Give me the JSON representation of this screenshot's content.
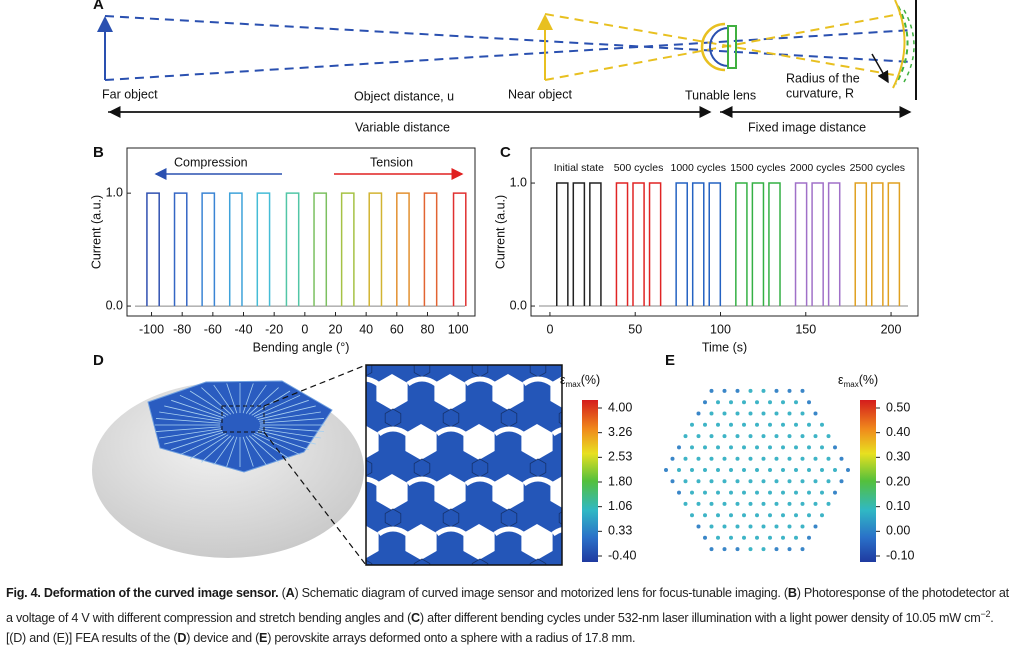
{
  "panel_a": {
    "label": "A",
    "far_object": "Far object",
    "object_distance": "Object distance, u",
    "near_object": "Near object",
    "tunable_lens": "Tunable lens",
    "radius_line1": "Radius of the",
    "radius_line2": "curvature, R",
    "variable_distance": "Variable distance",
    "fixed_distance": "Fixed image distance"
  },
  "panel_b": {
    "label": "B",
    "xlabel": "Bending angle (°)",
    "ylabel": "Current (a.u.)",
    "compression": "Compression",
    "tension": "Tension",
    "xlim": [
      -116,
      111
    ],
    "ylim": [
      -0.088,
      1.4
    ],
    "xticks": [
      -100,
      -80,
      -60,
      -40,
      -20,
      0,
      20,
      40,
      60,
      80,
      100
    ],
    "yticks": [
      {
        "value": 0,
        "label": "0.0"
      },
      {
        "value": 1,
        "label": "1.0"
      }
    ],
    "series": [
      {
        "color": "#3050b0",
        "x_on": [
          -103
        ],
        "x_off": [
          -95
        ],
        "values": [
          1.0
        ]
      },
      {
        "color": "#3466c4",
        "x_on": [
          -85
        ],
        "x_off": [
          -77
        ],
        "values": [
          1.0
        ]
      },
      {
        "color": "#3a84d4",
        "x_on": [
          -67
        ],
        "x_off": [
          -59
        ],
        "values": [
          1.0
        ]
      },
      {
        "color": "#3ea2da",
        "x_on": [
          -49
        ],
        "x_off": [
          -41
        ],
        "values": [
          1.0
        ]
      },
      {
        "color": "#44bcd6",
        "x_on": [
          -31
        ],
        "x_off": [
          -23
        ],
        "values": [
          1.0
        ]
      },
      {
        "color": "#52c6a6",
        "x_on": [
          -12
        ],
        "x_off": [
          -4
        ],
        "values": [
          1.0
        ]
      },
      {
        "color": "#7cc060",
        "x_on": [
          6
        ],
        "x_off": [
          14
        ],
        "values": [
          1.0
        ]
      },
      {
        "color": "#a6c244",
        "x_on": [
          24
        ],
        "x_off": [
          32
        ],
        "values": [
          1.0
        ]
      },
      {
        "color": "#d2b432",
        "x_on": [
          42
        ],
        "x_off": [
          50
        ],
        "values": [
          1.0
        ]
      },
      {
        "color": "#e29030",
        "x_on": [
          60
        ],
        "x_off": [
          68
        ],
        "values": [
          1.0
        ]
      },
      {
        "color": "#e26432",
        "x_on": [
          78
        ],
        "x_off": [
          86
        ],
        "values": [
          1.0
        ]
      },
      {
        "color": "#e03030",
        "x_on": [
          97
        ],
        "x_off": [
          105
        ],
        "values": [
          1.0
        ]
      }
    ]
  },
  "panel_c": {
    "label": "C",
    "xlabel": "Time (s)",
    "ylabel": "Current (a.u.)",
    "xlim": [
      -11.1,
      215.8
    ],
    "ylim": [
      -0.081,
      1.285
    ],
    "xticks": [
      0,
      50,
      100,
      150,
      200
    ],
    "yticks": [
      {
        "value": 0,
        "label": "0.0"
      },
      {
        "value": 1,
        "label": "1.0"
      }
    ],
    "series": [
      {
        "name": "Initial state",
        "color": "#222222",
        "x_on": [
          4,
          13.7,
          23.4
        ],
        "x_off": [
          10.5,
          20.2,
          29.9
        ],
        "values": [
          1,
          1,
          1
        ]
      },
      {
        "name": "500 cycles",
        "color": "#e02424",
        "x_on": [
          39,
          48.7,
          58.4
        ],
        "x_off": [
          45.5,
          55.2,
          64.9
        ],
        "values": [
          1,
          1,
          1
        ]
      },
      {
        "name": "1000 cycles",
        "color": "#2462c2",
        "x_on": [
          74,
          83.7,
          93.4
        ],
        "x_off": [
          80.5,
          90.2,
          99.9
        ],
        "values": [
          1,
          1,
          1
        ]
      },
      {
        "name": "1500 cycles",
        "color": "#34b044",
        "x_on": [
          109,
          118.7,
          128.4
        ],
        "x_off": [
          115.5,
          125.2,
          134.9
        ],
        "values": [
          1,
          1,
          1
        ]
      },
      {
        "name": "2000 cycles",
        "color": "#a070c8",
        "x_on": [
          144,
          153.7,
          163.4
        ],
        "x_off": [
          150.5,
          160.2,
          169.9
        ],
        "values": [
          1,
          1,
          1
        ]
      },
      {
        "name": "2500 cycles",
        "color": "#e0a020",
        "x_on": [
          179,
          188.7,
          198.4
        ],
        "x_off": [
          185.5,
          195.2,
          204.9
        ],
        "values": [
          1,
          1,
          1
        ]
      }
    ]
  },
  "panel_d": {
    "label": "D",
    "colorbar": {
      "symbol": "ε",
      "sub": "max",
      "unit": "(%)",
      "labels": [
        "4.00",
        "3.26",
        "2.53",
        "1.80",
        "1.06",
        "0.33",
        "-0.40"
      ]
    }
  },
  "panel_e": {
    "label": "E",
    "colorbar": {
      "symbol": "ε",
      "sub": "max",
      "unit": "(%)",
      "labels": [
        "0.50",
        "0.40",
        "0.30",
        "0.20",
        "0.10",
        "0.00",
        "-0.10"
      ]
    }
  },
  "caption": {
    "segments": [
      {
        "text": "Fig. 4. Deformation of the curved image sensor.",
        "bold": true
      },
      {
        "text": " ("
      },
      {
        "text": "A",
        "bold": true
      },
      {
        "text": ") Schematic diagram of curved image sensor and motorized lens for focus-tunable imaging. ("
      },
      {
        "text": "B",
        "bold": true
      },
      {
        "text": ") Photoresponse of the photodetector at a voltage of 4 V with different compression and stretch bending angles and ("
      },
      {
        "text": "C",
        "bold": true
      },
      {
        "text": ") after different bending cycles under 532-nm laser illumination with a light power density of 10.05 mW cm"
      },
      {
        "text": "−2",
        "sup": true
      },
      {
        "text": ". [(D) and (E)] FEA results of the ("
      },
      {
        "text": "D",
        "bold": true
      },
      {
        "text": ") device and ("
      },
      {
        "text": "E",
        "bold": true
      },
      {
        "text": ") perovskite arrays deformed onto a sphere with a radius of 17.8 mm."
      }
    ]
  }
}
